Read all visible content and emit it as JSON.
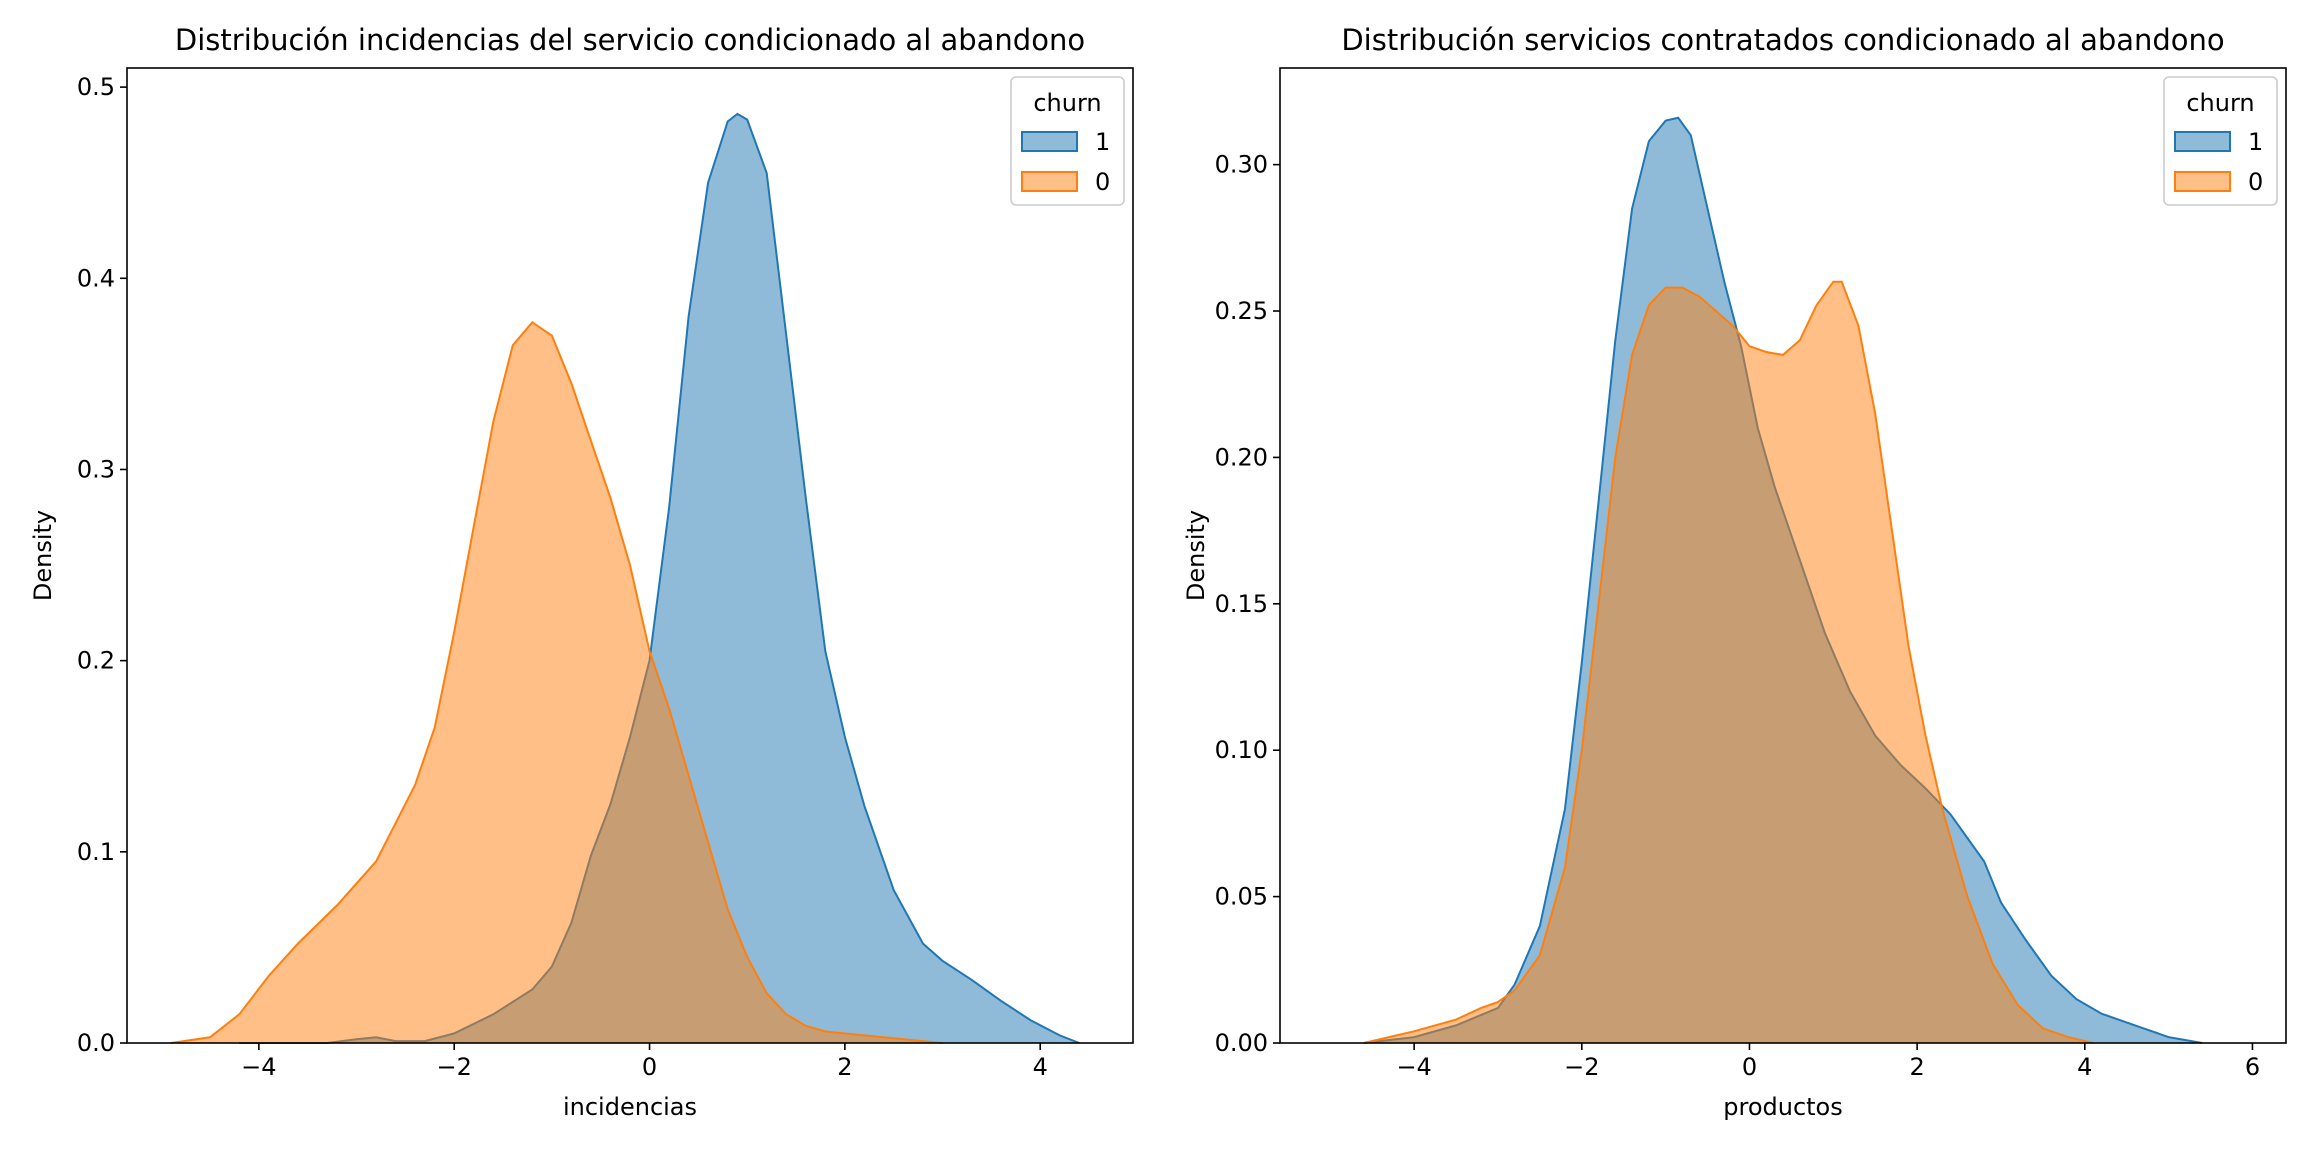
{
  "chart_data": [
    {
      "type": "area",
      "title": "Distribución incidencias del servicio condicionado al abandono",
      "xlabel": "incidencias",
      "ylabel": "Density",
      "xlim": [
        -5.35,
        4.95
      ],
      "ylim": [
        0,
        0.51
      ],
      "xticks": [
        -4,
        -2,
        0,
        2,
        4
      ],
      "xtick_labels": [
        "−4",
        "−2",
        "0",
        "2",
        "4"
      ],
      "yticks": [
        0.0,
        0.1,
        0.2,
        0.3,
        0.4,
        0.5
      ],
      "ytick_labels": [
        "0.0",
        "0.1",
        "0.2",
        "0.3",
        "0.4",
        "0.5"
      ],
      "legend": {
        "title": "churn",
        "position": "top-right",
        "entries": [
          "1",
          "0"
        ]
      },
      "series": [
        {
          "name": "1",
          "color": "#1f77b4",
          "fill": "#1f77b4",
          "x": [
            -4.2,
            -3.3,
            -3.0,
            -2.8,
            -2.6,
            -2.3,
            -2.0,
            -1.6,
            -1.2,
            -1.0,
            -0.8,
            -0.6,
            -0.4,
            -0.2,
            0.0,
            0.2,
            0.4,
            0.6,
            0.8,
            0.9,
            1.0,
            1.2,
            1.4,
            1.6,
            1.8,
            2.0,
            2.2,
            2.5,
            2.8,
            3.0,
            3.3,
            3.6,
            3.9,
            4.2,
            4.4
          ],
          "y": [
            0.0,
            0.0,
            0.002,
            0.003,
            0.001,
            0.001,
            0.005,
            0.015,
            0.028,
            0.04,
            0.063,
            0.098,
            0.125,
            0.16,
            0.2,
            0.28,
            0.38,
            0.45,
            0.482,
            0.486,
            0.483,
            0.455,
            0.37,
            0.285,
            0.205,
            0.16,
            0.124,
            0.08,
            0.052,
            0.043,
            0.033,
            0.022,
            0.012,
            0.004,
            0.0
          ]
        },
        {
          "name": "0",
          "color": "#ff7f0e",
          "fill": "#ff7f0e",
          "x": [
            -4.9,
            -4.5,
            -4.2,
            -3.9,
            -3.6,
            -3.2,
            -2.8,
            -2.4,
            -2.2,
            -2.0,
            -1.8,
            -1.6,
            -1.4,
            -1.2,
            -1.0,
            -0.8,
            -0.6,
            -0.4,
            -0.2,
            0.0,
            0.2,
            0.4,
            0.6,
            0.8,
            1.0,
            1.2,
            1.4,
            1.6,
            1.8,
            2.2,
            2.6,
            3.0
          ],
          "y": [
            0.0,
            0.003,
            0.015,
            0.035,
            0.052,
            0.072,
            0.095,
            0.135,
            0.165,
            0.215,
            0.27,
            0.325,
            0.365,
            0.377,
            0.37,
            0.345,
            0.315,
            0.285,
            0.25,
            0.205,
            0.175,
            0.14,
            0.105,
            0.07,
            0.045,
            0.026,
            0.015,
            0.009,
            0.006,
            0.004,
            0.002,
            0.0
          ]
        }
      ]
    },
    {
      "type": "area",
      "title": "Distribución servicios contratados condicionado al abandono",
      "xlabel": "productos",
      "ylabel": "Density",
      "xlim": [
        -5.6,
        6.4
      ],
      "ylim": [
        0,
        0.333
      ],
      "xticks": [
        -4,
        -2,
        0,
        2,
        4,
        6
      ],
      "xtick_labels": [
        "−4",
        "−2",
        "0",
        "2",
        "4",
        "6"
      ],
      "yticks": [
        0.0,
        0.05,
        0.1,
        0.15,
        0.2,
        0.25,
        0.3
      ],
      "ytick_labels": [
        "0.00",
        "0.05",
        "0.10",
        "0.15",
        "0.20",
        "0.25",
        "0.30"
      ],
      "legend": {
        "title": "churn",
        "position": "top-right",
        "entries": [
          "1",
          "0"
        ]
      },
      "series": [
        {
          "name": "1",
          "color": "#1f77b4",
          "fill": "#1f77b4",
          "x": [
            -4.6,
            -4.0,
            -3.5,
            -3.0,
            -2.8,
            -2.5,
            -2.2,
            -2.0,
            -1.8,
            -1.6,
            -1.4,
            -1.2,
            -1.0,
            -0.85,
            -0.7,
            -0.5,
            -0.3,
            -0.1,
            0.1,
            0.3,
            0.6,
            0.9,
            1.2,
            1.5,
            1.8,
            2.1,
            2.4,
            2.6,
            2.8,
            3.0,
            3.3,
            3.6,
            3.9,
            4.2,
            4.6,
            5.0,
            5.4
          ],
          "y": [
            0.0,
            0.002,
            0.006,
            0.012,
            0.02,
            0.04,
            0.08,
            0.13,
            0.185,
            0.24,
            0.285,
            0.308,
            0.315,
            0.316,
            0.31,
            0.285,
            0.26,
            0.238,
            0.21,
            0.19,
            0.165,
            0.14,
            0.12,
            0.105,
            0.095,
            0.087,
            0.078,
            0.07,
            0.062,
            0.048,
            0.035,
            0.023,
            0.015,
            0.01,
            0.006,
            0.002,
            0.0
          ]
        },
        {
          "name": "0",
          "color": "#ff7f0e",
          "fill": "#ff7f0e",
          "x": [
            -4.6,
            -4.0,
            -3.5,
            -3.2,
            -3.0,
            -2.8,
            -2.5,
            -2.2,
            -2.0,
            -1.8,
            -1.6,
            -1.4,
            -1.2,
            -1.0,
            -0.8,
            -0.6,
            -0.4,
            -0.2,
            0.0,
            0.2,
            0.4,
            0.6,
            0.8,
            1.0,
            1.1,
            1.3,
            1.5,
            1.7,
            1.9,
            2.1,
            2.3,
            2.6,
            2.9,
            3.2,
            3.5,
            3.8,
            4.1
          ],
          "y": [
            0.0,
            0.004,
            0.008,
            0.012,
            0.014,
            0.018,
            0.03,
            0.06,
            0.1,
            0.15,
            0.2,
            0.235,
            0.252,
            0.258,
            0.258,
            0.255,
            0.25,
            0.245,
            0.238,
            0.236,
            0.235,
            0.24,
            0.252,
            0.26,
            0.26,
            0.245,
            0.215,
            0.175,
            0.135,
            0.105,
            0.08,
            0.05,
            0.027,
            0.013,
            0.005,
            0.002,
            0.0
          ]
        }
      ]
    }
  ]
}
